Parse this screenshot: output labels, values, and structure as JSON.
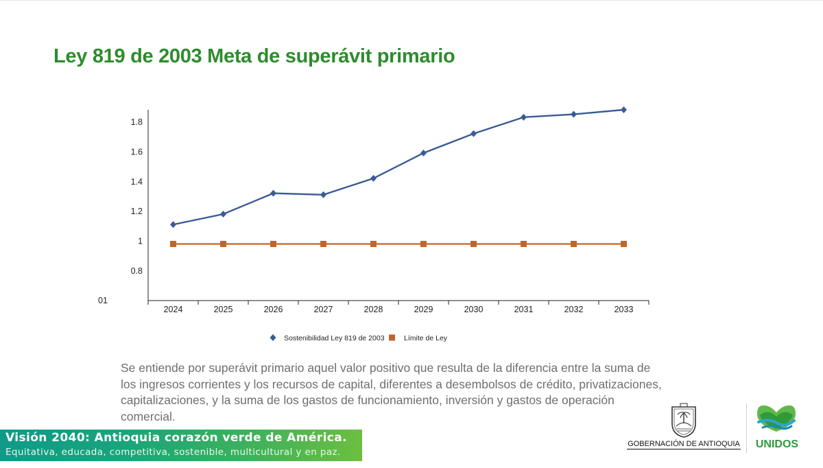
{
  "slide": {
    "title": "Ley 819 de 2003 Meta de superávit primario",
    "body": "Se entiende por superávit primario aquel valor positivo que resulta de la diferencia entre la suma de los ingresos corrientes y los recursos de capital, diferentes a desembolsos de crédito, privatizaciones, capitalizaciones, y la suma de los gastos de funcionamiento, inversión y gastos de operación comercial."
  },
  "chart_data": {
    "type": "line",
    "title": "",
    "xlabel": "",
    "ylabel": "",
    "categories": [
      "2024",
      "2025",
      "2026",
      "2027",
      "2028",
      "2029",
      "2030",
      "2031",
      "2032",
      "2033"
    ],
    "y_ticks": [
      "1.8",
      "1.6",
      "1.4",
      "1.2",
      "1",
      "0.8"
    ],
    "y_tick_values": [
      1.8,
      1.6,
      1.4,
      1.2,
      1.0,
      0.8
    ],
    "y_cut_label": "01",
    "ylim": [
      0.6,
      1.88
    ],
    "grid": false,
    "legend_position": "bottom",
    "series": [
      {
        "name": "Sostenibilidad Ley 819 de 2003",
        "color": "#3a5a98",
        "marker": "diamond",
        "values": [
          1.11,
          1.18,
          1.32,
          1.31,
          1.42,
          1.59,
          1.72,
          1.83,
          1.85,
          1.88
        ]
      },
      {
        "name": "Límite de Ley",
        "color": "#c0662a",
        "marker": "square",
        "values": [
          0.98,
          0.98,
          0.98,
          0.98,
          0.98,
          0.98,
          0.98,
          0.98,
          0.98,
          0.98
        ]
      }
    ]
  },
  "banner": {
    "title": "Visión 2040: Antioquia corazón verde de América.",
    "subtitle": "Equitativa, educada, competitiva, sostenible, multicultural y en paz."
  },
  "logos": {
    "government": "GOBERNACIÓN DE ANTIOQUIA",
    "unidos": "UNIDOS"
  }
}
